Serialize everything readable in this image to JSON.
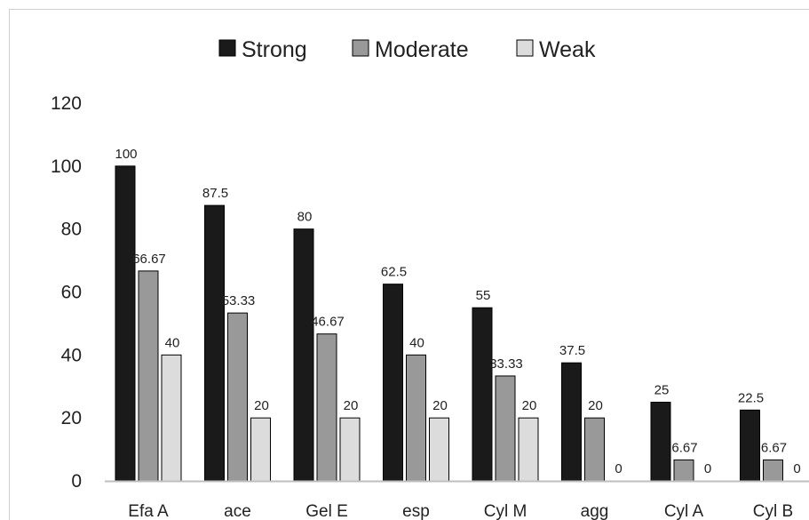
{
  "chart_data": {
    "type": "bar",
    "title": "",
    "xlabel": "",
    "ylabel": "",
    "ylim": [
      0,
      120
    ],
    "y_ticks": [
      0,
      20,
      40,
      60,
      80,
      100,
      120
    ],
    "grid": false,
    "legend_position": "top",
    "categories": [
      "Efa A",
      "ace",
      "Gel E",
      "esp",
      "Cyl M",
      "agg",
      "Cyl A",
      "Cyl B"
    ],
    "series": [
      {
        "name": "Strong",
        "color": "#1a1a1a",
        "values": [
          100,
          87.5,
          80,
          62.5,
          55,
          37.5,
          25,
          22.5
        ]
      },
      {
        "name": "Moderate",
        "color": "#999999",
        "values": [
          66.67,
          53.33,
          46.67,
          40,
          33.33,
          20,
          6.67,
          6.67
        ]
      },
      {
        "name": "Weak",
        "color": "#dcdcdc",
        "values": [
          40,
          20,
          20,
          20,
          20,
          0,
          0,
          0
        ]
      }
    ]
  }
}
